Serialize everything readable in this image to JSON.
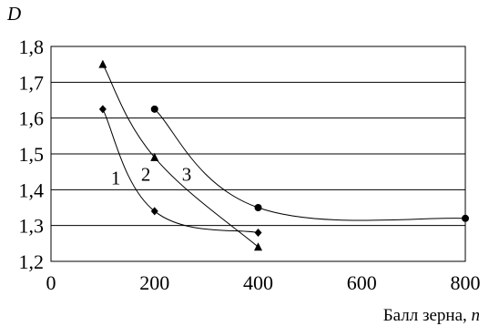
{
  "chart_data": {
    "type": "line",
    "xlabel": {
      "text": "Балл зерна, ",
      "var": "n"
    },
    "ylabel": "D",
    "xlim": [
      0,
      800
    ],
    "ylim": [
      1.2,
      1.8
    ],
    "xticks": [
      {
        "value": 0,
        "label": "0"
      },
      {
        "value": 200,
        "label": "200"
      },
      {
        "value": 400,
        "label": "400"
      },
      {
        "value": 600,
        "label": "600"
      },
      {
        "value": 800,
        "label": "800"
      }
    ],
    "yticks": [
      {
        "value": 1.2,
        "label": "1,2"
      },
      {
        "value": 1.3,
        "label": "1,3"
      },
      {
        "value": 1.4,
        "label": "1,4"
      },
      {
        "value": 1.5,
        "label": "1,5"
      },
      {
        "value": 1.6,
        "label": "1,6"
      },
      {
        "value": 1.7,
        "label": "1,7"
      },
      {
        "value": 1.8,
        "label": "1,8"
      }
    ],
    "grid": "horizontal",
    "legend": "none",
    "series": [
      {
        "label": "1",
        "marker": "diamond",
        "label_at": [
          125,
          1.435
        ],
        "x": [
          100,
          200,
          400
        ],
        "y": [
          1.625,
          1.34,
          1.28
        ]
      },
      {
        "label": "2",
        "marker": "triangle",
        "label_at": [
          183,
          1.445
        ],
        "x": [
          100,
          200,
          400
        ],
        "y": [
          1.75,
          1.49,
          1.24
        ]
      },
      {
        "label": "3",
        "marker": "circle",
        "label_at": [
          262,
          1.445
        ],
        "x": [
          200,
          400,
          800
        ],
        "y": [
          1.625,
          1.35,
          1.32
        ]
      }
    ]
  }
}
